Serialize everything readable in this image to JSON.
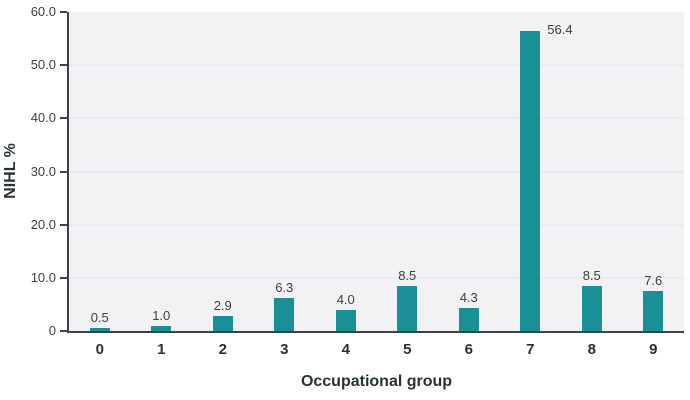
{
  "chart_data": {
    "type": "bar",
    "title": "",
    "xlabel": "Occupational group",
    "ylabel": "NIHL %",
    "categories": [
      "0",
      "1",
      "2",
      "3",
      "4",
      "5",
      "6",
      "7",
      "8",
      "9"
    ],
    "values": [
      0.5,
      1.0,
      2.9,
      6.3,
      4.0,
      8.5,
      4.3,
      56.4,
      8.5,
      7.6
    ],
    "value_labels": [
      "0.5",
      "1.0",
      "2.9",
      "6.3",
      "4.0",
      "8.5",
      "4.3",
      "56.4",
      "8.5",
      "7.6"
    ],
    "ylim": [
      0,
      60
    ],
    "ytick_interval": 10,
    "ytick_labels": [
      "0",
      "10.0",
      "20.0",
      "30.0",
      "40.0",
      "50.0",
      "60.0"
    ],
    "grid": "horizontal",
    "legend": "none",
    "colors": {
      "bar": "#1a8f96",
      "axis": "#3a4247",
      "plot_bg": "#f2f2f4",
      "gridline": "#e8ebf2",
      "tick_text": "#3c4245",
      "value_text": "#3a3f42",
      "title_text": "#273238"
    }
  }
}
